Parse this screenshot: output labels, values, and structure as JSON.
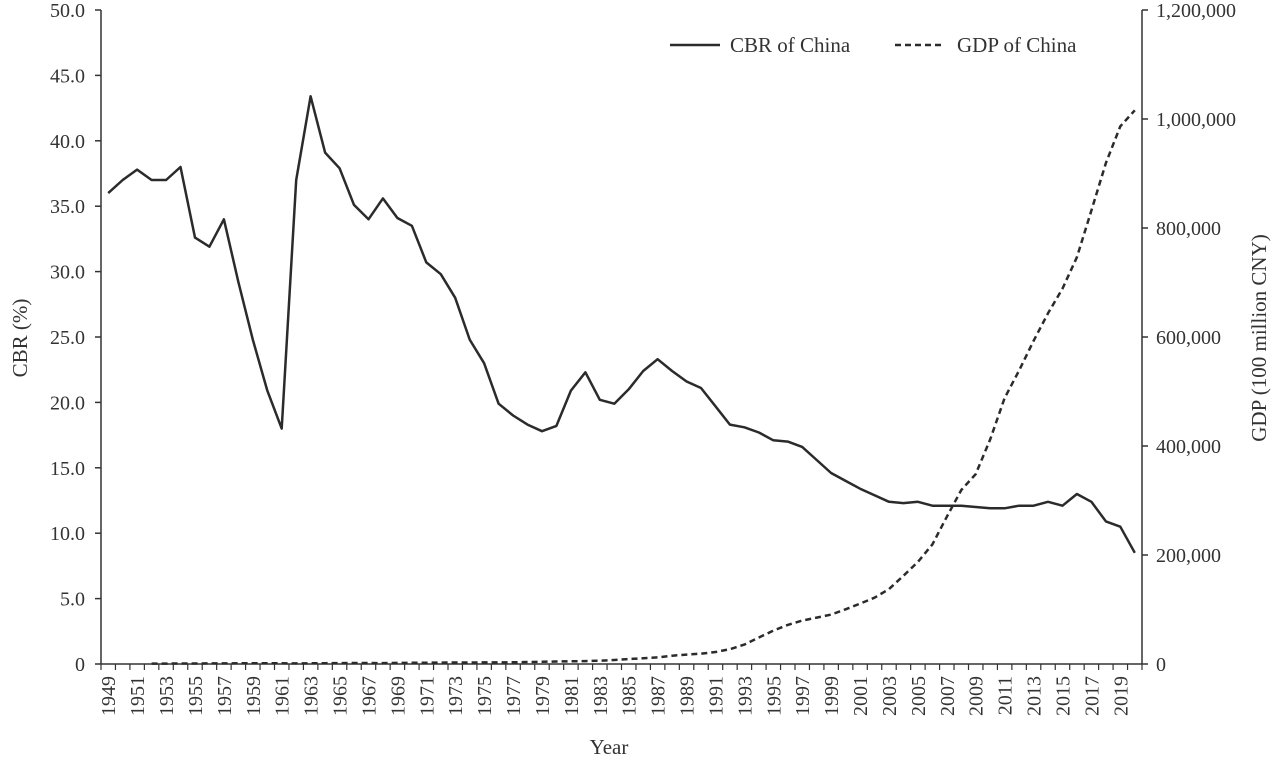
{
  "chart_data": {
    "type": "line",
    "title": "",
    "xlabel": "Year",
    "ylabel_left": "CBR (%)",
    "ylabel_right": "GDP (100 million CNY)",
    "x": [
      1949,
      1950,
      1951,
      1952,
      1953,
      1954,
      1955,
      1956,
      1957,
      1958,
      1959,
      1960,
      1961,
      1962,
      1963,
      1964,
      1965,
      1966,
      1967,
      1968,
      1969,
      1970,
      1971,
      1972,
      1973,
      1974,
      1975,
      1976,
      1977,
      1978,
      1979,
      1980,
      1981,
      1982,
      1983,
      1984,
      1985,
      1986,
      1987,
      1988,
      1989,
      1990,
      1991,
      1992,
      1993,
      1994,
      1995,
      1996,
      1997,
      1998,
      1999,
      2000,
      2001,
      2002,
      2003,
      2004,
      2005,
      2006,
      2007,
      2008,
      2009,
      2010,
      2011,
      2012,
      2013,
      2014,
      2015,
      2016,
      2017,
      2018,
      2019,
      2020
    ],
    "xticks": [
      "1949",
      "1951",
      "1953",
      "1955",
      "1957",
      "1959",
      "1961",
      "1963",
      "1965",
      "1967",
      "1969",
      "1971",
      "1973",
      "1975",
      "1977",
      "1979",
      "1981",
      "1983",
      "1985",
      "1987",
      "1989",
      "1991",
      "1993",
      "1995",
      "1997",
      "1999",
      "2001",
      "2003",
      "2005",
      "2007",
      "2009",
      "2011",
      "2013",
      "2015",
      "2017",
      "2019"
    ],
    "ylim_left": [
      0,
      50
    ],
    "yticks_left": [
      "0",
      "5.0",
      "10.0",
      "15.0",
      "20.0",
      "25.0",
      "30.0",
      "35.0",
      "40.0",
      "45.0",
      "50.0"
    ],
    "ylim_right": [
      0,
      1200000
    ],
    "yticks_right": [
      "0",
      "200,000",
      "400,000",
      "600,000",
      "800,000",
      "1,000,000",
      "1,200,000"
    ],
    "legend_position": "top-right",
    "series": [
      {
        "name": "CBR of China",
        "axis": "left",
        "style": "solid",
        "values": [
          36.0,
          37.0,
          37.8,
          37.0,
          37.0,
          38.0,
          32.6,
          31.9,
          34.0,
          29.2,
          24.8,
          20.9,
          18.0,
          37.0,
          43.4,
          39.1,
          37.9,
          35.1,
          34.0,
          35.6,
          34.1,
          33.5,
          30.7,
          29.8,
          28.0,
          24.8,
          23.0,
          19.9,
          19.0,
          18.3,
          17.8,
          18.2,
          20.9,
          22.3,
          20.2,
          19.9,
          21.0,
          22.4,
          23.3,
          22.4,
          21.6,
          21.1,
          19.7,
          18.3,
          18.1,
          17.7,
          17.1,
          17.0,
          16.6,
          15.6,
          14.6,
          14.0,
          13.4,
          12.9,
          12.4,
          12.3,
          12.4,
          12.1,
          12.1,
          12.1,
          12.0,
          11.9,
          11.9,
          12.1,
          12.1,
          12.4,
          12.1,
          13.0,
          12.4,
          10.9,
          10.5,
          8.5
        ]
      },
      {
        "name": "GDP of China",
        "axis": "right",
        "style": "dashed",
        "values": [
          null,
          null,
          null,
          679,
          824,
          859,
          910,
          1028,
          1068,
          1307,
          1439,
          1457,
          1220,
          1149,
          1233,
          1454,
          1716,
          1868,
          1773,
          1723,
          1937,
          2252,
          2426,
          2518,
          2720,
          2789,
          2997,
          2943,
          3201,
          3679,
          4100,
          4588,
          4936,
          5373,
          6021,
          7279,
          9099,
          10376,
          12175,
          15180,
          17180,
          18873,
          22006,
          27195,
          35673,
          48638,
          61340,
          71814,
          79715,
          85196,
          90564,
          100280,
          110863,
          121717,
          137422,
          161840,
          187319,
          219438,
          270092,
          319245,
          348518,
          412119,
          487940,
          538580,
          592963,
          643563,
          688858,
          746395,
          832036,
          919281,
          986515,
          1015986
        ]
      }
    ]
  }
}
